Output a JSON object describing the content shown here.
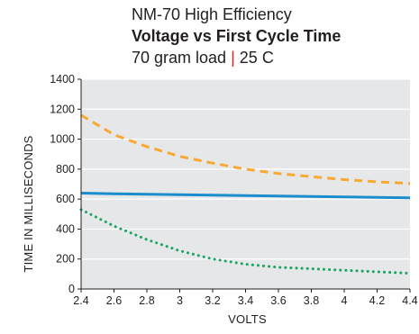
{
  "titles": {
    "line1": "NM-70 High Efficiency",
    "line2": "Voltage vs First Cycle Time",
    "line3_a": "70 gram load",
    "line3_sep": "|",
    "line3_b": "25 C"
  },
  "chart_data": {
    "type": "line",
    "title": "Voltage vs First Cycle Time",
    "xlabel": "VOLTS",
    "ylabel": "TIME IN MILLISECONDS",
    "xlim": [
      2.4,
      4.4
    ],
    "ylim": [
      0,
      1400
    ],
    "xticks": [
      "2.4",
      "2.6",
      "2.8",
      "3",
      "3.2",
      "3.4",
      "3.6",
      "3.8",
      "4",
      "4.2",
      "4.4"
    ],
    "yticks": [
      "0",
      "200",
      "400",
      "600",
      "800",
      "1000",
      "1200",
      "1400"
    ],
    "grid": true,
    "legend": "none",
    "x": [
      2.4,
      2.6,
      2.8,
      3.0,
      3.2,
      3.4,
      3.6,
      3.8,
      4.0,
      4.2,
      4.4
    ],
    "series": [
      {
        "color": "#f7a933",
        "style": "dashed",
        "values": [
          1160,
          1030,
          950,
          885,
          840,
          800,
          770,
          750,
          730,
          715,
          705
        ]
      },
      {
        "color": "#1b8dcd",
        "style": "solid",
        "values": [
          640,
          636,
          632,
          629,
          626,
          623,
          620,
          617,
          614,
          611,
          608
        ]
      },
      {
        "color": "#1aa563",
        "style": "dotted",
        "values": [
          530,
          420,
          330,
          255,
          200,
          165,
          145,
          135,
          125,
          115,
          105
        ]
      }
    ],
    "colors": {
      "plot_bg": "#e6e7e8",
      "grid": "#ffffff",
      "axis": "#231f20"
    }
  }
}
